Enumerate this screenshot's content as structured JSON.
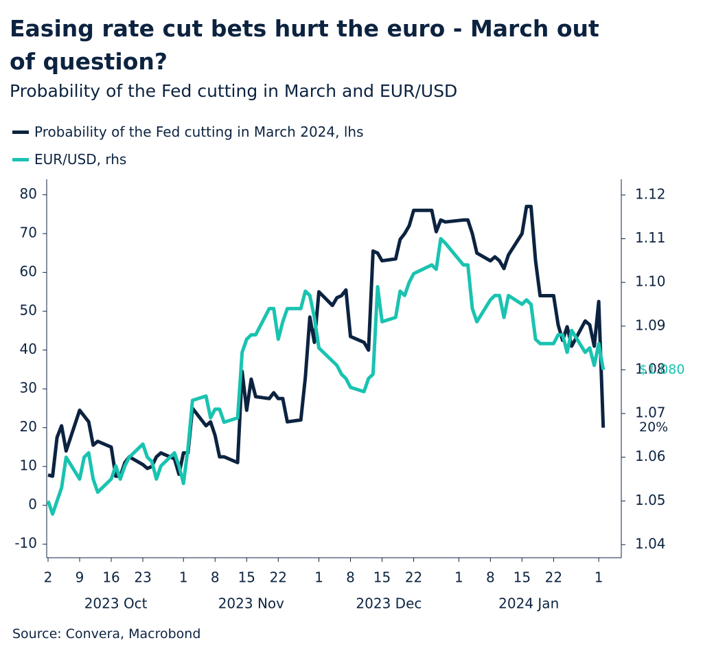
{
  "chart_data": {
    "type": "line",
    "title": "Easing rate cut bets hurt the euro - March out of question?",
    "subtitle": "Probability of the Fed cutting in March and EUR/USD",
    "source": "Source: Convera, Macrobond",
    "x": [
      "2023-10-02",
      "2023-10-03",
      "2023-10-04",
      "2023-10-05",
      "2023-10-06",
      "2023-10-09",
      "2023-10-10",
      "2023-10-11",
      "2023-10-12",
      "2023-10-13",
      "2023-10-16",
      "2023-10-17",
      "2023-10-18",
      "2023-10-19",
      "2023-10-20",
      "2023-10-23",
      "2023-10-24",
      "2023-10-25",
      "2023-10-26",
      "2023-10-27",
      "2023-10-30",
      "2023-10-31",
      "2023-11-01",
      "2023-11-02",
      "2023-11-03",
      "2023-11-06",
      "2023-11-07",
      "2023-11-08",
      "2023-11-09",
      "2023-11-10",
      "2023-11-13",
      "2023-11-14",
      "2023-11-15",
      "2023-11-16",
      "2023-11-17",
      "2023-11-20",
      "2023-11-21",
      "2023-11-22",
      "2023-11-23",
      "2023-11-24",
      "2023-11-27",
      "2023-11-28",
      "2023-11-29",
      "2023-11-30",
      "2023-12-01",
      "2023-12-04",
      "2023-12-05",
      "2023-12-06",
      "2023-12-07",
      "2023-12-08",
      "2023-12-11",
      "2023-12-12",
      "2023-12-13",
      "2023-12-14",
      "2023-12-15",
      "2023-12-18",
      "2023-12-19",
      "2023-12-20",
      "2023-12-21",
      "2023-12-22",
      "2023-12-26",
      "2023-12-27",
      "2023-12-28",
      "2023-12-29",
      "2024-01-02",
      "2024-01-03",
      "2024-01-04",
      "2024-01-05",
      "2024-01-08",
      "2024-01-09",
      "2024-01-10",
      "2024-01-11",
      "2024-01-12",
      "2024-01-15",
      "2024-01-16",
      "2024-01-17",
      "2024-01-18",
      "2024-01-19",
      "2024-01-22",
      "2024-01-23",
      "2024-01-24",
      "2024-01-25",
      "2024-01-26",
      "2024-01-29",
      "2024-01-30",
      "2024-01-31",
      "2024-02-01",
      "2024-02-02"
    ],
    "series": [
      {
        "name": "Probability of the Fed cutting in March 2024, lhs",
        "color": "#0c2340",
        "end_label": "20%",
        "values": [
          7.8,
          7.5,
          17.5,
          20.5,
          14,
          24.5,
          23,
          21.5,
          15.5,
          16.5,
          15,
          7.5,
          7.5,
          11,
          12.5,
          10.5,
          9.5,
          10,
          12.5,
          13.5,
          12,
          8,
          13.5,
          13.5,
          25,
          20.5,
          21.5,
          18,
          12.5,
          12.5,
          11,
          34.5,
          24.5,
          32.5,
          28,
          27.5,
          29,
          27.5,
          27.5,
          21.5,
          22,
          33,
          48.5,
          42,
          55,
          51.5,
          53.5,
          54,
          55.5,
          43.5,
          42,
          40,
          65.5,
          65,
          63,
          63.5,
          68.5,
          70,
          72,
          76,
          76,
          70.5,
          73.5,
          73,
          73.5,
          73.5,
          70,
          65,
          63,
          64,
          63,
          61,
          64.5,
          70,
          77,
          77,
          63,
          54,
          54,
          46.5,
          42.5,
          46,
          41,
          47.5,
          46.5,
          41,
          52.5,
          20
        ]
      },
      {
        "name": "EUR/USD, rhs",
        "color": "#19c3b0",
        "axis": "y2",
        "end_label": "$1.080",
        "values": [
          1.05,
          1.047,
          1.05,
          1.053,
          1.06,
          1.055,
          1.06,
          1.061,
          1.055,
          1.052,
          1.055,
          1.058,
          1.055,
          1.058,
          1.06,
          1.063,
          1.06,
          1.059,
          1.055,
          1.058,
          1.061,
          1.058,
          1.054,
          1.062,
          1.073,
          1.074,
          1.069,
          1.071,
          1.071,
          1.068,
          1.069,
          1.084,
          1.087,
          1.088,
          1.088,
          1.094,
          1.094,
          1.087,
          1.091,
          1.094,
          1.094,
          1.098,
          1.097,
          1.092,
          1.085,
          1.082,
          1.081,
          1.079,
          1.078,
          1.076,
          1.075,
          1.078,
          1.079,
          1.099,
          1.091,
          1.092,
          1.098,
          1.097,
          1.1,
          1.102,
          1.104,
          1.103,
          1.11,
          1.109,
          1.104,
          1.104,
          1.094,
          1.091,
          1.096,
          1.097,
          1.097,
          1.092,
          1.097,
          1.095,
          1.096,
          1.095,
          1.087,
          1.086,
          1.086,
          1.088,
          1.088,
          1.084,
          1.089,
          1.084,
          1.085,
          1.081,
          1.086,
          1.08
        ]
      }
    ],
    "xlim": [
      "2023-10-02",
      "2024-02-06"
    ],
    "xticks": [
      {
        "value": "2023-10-02",
        "label": "2"
      },
      {
        "value": "2023-10-09",
        "label": "9"
      },
      {
        "value": "2023-10-16",
        "label": "16"
      },
      {
        "value": "2023-10-23",
        "label": "23"
      },
      {
        "value": "2023-11-01",
        "label": "1"
      },
      {
        "value": "2023-11-08",
        "label": "8"
      },
      {
        "value": "2023-11-15",
        "label": "15"
      },
      {
        "value": "2023-11-22",
        "label": "22"
      },
      {
        "value": "2023-12-01",
        "label": "1"
      },
      {
        "value": "2023-12-08",
        "label": "8"
      },
      {
        "value": "2023-12-15",
        "label": "15"
      },
      {
        "value": "2023-12-22",
        "label": "22"
      },
      {
        "value": "2024-01-01",
        "label": "1"
      },
      {
        "value": "2024-01-08",
        "label": "8"
      },
      {
        "value": "2024-01-15",
        "label": "15"
      },
      {
        "value": "2024-01-22",
        "label": "22"
      },
      {
        "value": "2024-02-01",
        "label": "1"
      }
    ],
    "month_labels": [
      "2023 Oct",
      "2023 Nov",
      "2023 Dec",
      "2024 Jan"
    ],
    "ylim": [
      -13.5,
      84
    ],
    "yticks": [
      -10,
      0,
      10,
      20,
      30,
      40,
      50,
      60,
      70,
      80
    ],
    "y2lim": [
      1.037,
      1.1236
    ],
    "y2ticks": [
      1.04,
      1.05,
      1.06,
      1.07,
      1.08,
      1.09,
      {
        "value": 1.1,
        "label": "1.10"
      },
      1.11,
      1.12
    ],
    "grid": false
  }
}
